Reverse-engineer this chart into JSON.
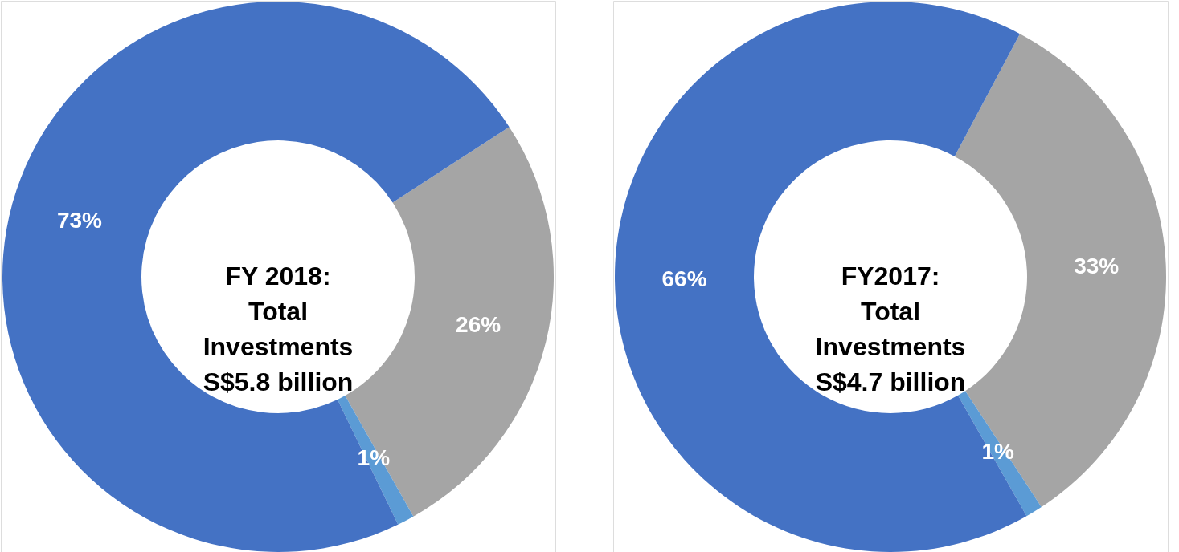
{
  "chart_data": [
    {
      "type": "donut",
      "categories": [
        null,
        null,
        null
      ],
      "values": [
        26,
        1,
        73
      ],
      "colors": [
        "#a5a5a5",
        "#5b9bd5",
        "#4472c4"
      ],
      "value_labels": [
        "26%",
        "1%",
        "73%"
      ],
      "annotations": [
        "FY 2018:\nTotal\nInvestments\nS$5.8 billion"
      ]
    },
    {
      "type": "donut",
      "categories": [
        null,
        null,
        null
      ],
      "values": [
        33,
        1,
        66
      ],
      "colors": [
        "#a5a5a5",
        "#5b9bd5",
        "#4472c4"
      ],
      "value_labels": [
        "33%",
        "1%",
        "66%"
      ],
      "annotations": [
        "FY2017:\nTotal\nInvestments\nS$4.7 billion"
      ]
    }
  ]
}
